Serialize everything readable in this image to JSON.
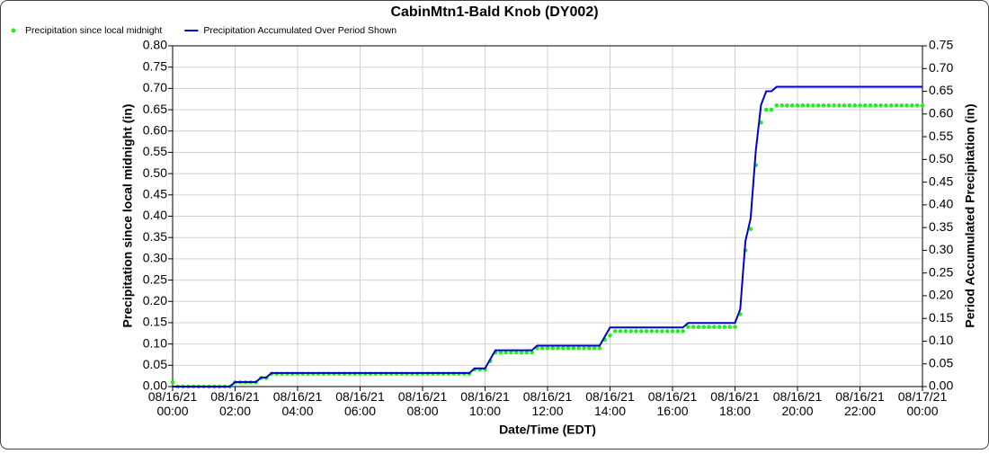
{
  "chart_data": {
    "type": "line-scatter",
    "title": "CabinMtn1-Bald Knob (DY002)",
    "x_label": "Date/Time (EDT)",
    "y_label": "Precipitation since local midnight (in)",
    "y2_label": "Period Accumulated Precipitation (in)",
    "x": [
      "08/16/21 00:00",
      "08/16/21 00:10",
      "08/16/21 00:20",
      "08/16/21 00:30",
      "08/16/21 00:40",
      "08/16/21 00:50",
      "08/16/21 01:00",
      "08/16/21 01:10",
      "08/16/21 01:20",
      "08/16/21 01:30",
      "08/16/21 01:40",
      "08/16/21 01:50",
      "08/16/21 02:00",
      "08/16/21 02:10",
      "08/16/21 02:20",
      "08/16/21 02:30",
      "08/16/21 02:40",
      "08/16/21 02:50",
      "08/16/21 03:00",
      "08/16/21 03:10",
      "08/16/21 03:20",
      "08/16/21 03:30",
      "08/16/21 03:40",
      "08/16/21 03:50",
      "08/16/21 04:00",
      "08/16/21 04:10",
      "08/16/21 04:20",
      "08/16/21 04:30",
      "08/16/21 04:40",
      "08/16/21 04:50",
      "08/16/21 05:00",
      "08/16/21 05:10",
      "08/16/21 05:20",
      "08/16/21 05:30",
      "08/16/21 05:40",
      "08/16/21 05:50",
      "08/16/21 06:00",
      "08/16/21 06:10",
      "08/16/21 06:20",
      "08/16/21 06:30",
      "08/16/21 06:40",
      "08/16/21 06:50",
      "08/16/21 07:00",
      "08/16/21 07:10",
      "08/16/21 07:20",
      "08/16/21 07:30",
      "08/16/21 07:40",
      "08/16/21 07:50",
      "08/16/21 08:00",
      "08/16/21 08:10",
      "08/16/21 08:20",
      "08/16/21 08:30",
      "08/16/21 08:40",
      "08/16/21 08:50",
      "08/16/21 09:00",
      "08/16/21 09:10",
      "08/16/21 09:20",
      "08/16/21 09:30",
      "08/16/21 09:40",
      "08/16/21 09:50",
      "08/16/21 10:00",
      "08/16/21 10:10",
      "08/16/21 10:20",
      "08/16/21 10:30",
      "08/16/21 10:40",
      "08/16/21 10:50",
      "08/16/21 11:00",
      "08/16/21 11:10",
      "08/16/21 11:20",
      "08/16/21 11:30",
      "08/16/21 11:40",
      "08/16/21 11:50",
      "08/16/21 12:00",
      "08/16/21 12:10",
      "08/16/21 12:20",
      "08/16/21 12:30",
      "08/16/21 12:40",
      "08/16/21 12:50",
      "08/16/21 13:00",
      "08/16/21 13:10",
      "08/16/21 13:20",
      "08/16/21 13:30",
      "08/16/21 13:40",
      "08/16/21 13:50",
      "08/16/21 14:00",
      "08/16/21 14:10",
      "08/16/21 14:20",
      "08/16/21 14:30",
      "08/16/21 14:40",
      "08/16/21 14:50",
      "08/16/21 15:00",
      "08/16/21 15:10",
      "08/16/21 15:20",
      "08/16/21 15:30",
      "08/16/21 15:40",
      "08/16/21 15:50",
      "08/16/21 16:00",
      "08/16/21 16:10",
      "08/16/21 16:20",
      "08/16/21 16:30",
      "08/16/21 16:40",
      "08/16/21 16:50",
      "08/16/21 17:00",
      "08/16/21 17:10",
      "08/16/21 17:20",
      "08/16/21 17:30",
      "08/16/21 17:40",
      "08/16/21 17:50",
      "08/16/21 18:00",
      "08/16/21 18:10",
      "08/16/21 18:20",
      "08/16/21 18:30",
      "08/16/21 18:40",
      "08/16/21 18:50",
      "08/16/21 19:00",
      "08/16/21 19:10",
      "08/16/21 19:20",
      "08/16/21 19:30",
      "08/16/21 19:40",
      "08/16/21 19:50",
      "08/16/21 20:00",
      "08/16/21 20:10",
      "08/16/21 20:20",
      "08/16/21 20:30",
      "08/16/21 20:40",
      "08/16/21 20:50",
      "08/16/21 21:00",
      "08/16/21 21:10",
      "08/16/21 21:20",
      "08/16/21 21:30",
      "08/16/21 21:40",
      "08/16/21 21:50",
      "08/16/21 22:00",
      "08/16/21 22:10",
      "08/16/21 22:20",
      "08/16/21 22:30",
      "08/16/21 22:40",
      "08/16/21 22:50",
      "08/16/21 23:00",
      "08/16/21 23:10",
      "08/16/21 23:20",
      "08/16/21 23:30",
      "08/16/21 23:40",
      "08/16/21 23:50",
      "08/17/21 00:00"
    ],
    "series": [
      {
        "name": "Precipitation since local midnight",
        "color": "#22ee22",
        "kind": "scatter",
        "axis": "y",
        "values": [
          0.01,
          0,
          0,
          0,
          0,
          0,
          0,
          0,
          0,
          0,
          0,
          0,
          0.01,
          0.01,
          0.01,
          0.01,
          0.01,
          0.02,
          0.02,
          0.03,
          0.03,
          0.03,
          0.03,
          0.03,
          0.03,
          0.03,
          0.03,
          0.03,
          0.03,
          0.03,
          0.03,
          0.03,
          0.03,
          0.03,
          0.03,
          0.03,
          0.03,
          0.03,
          0.03,
          0.03,
          0.03,
          0.03,
          0.03,
          0.03,
          0.03,
          0.03,
          0.03,
          0.03,
          0.03,
          0.03,
          0.03,
          0.03,
          0.03,
          0.03,
          0.03,
          0.03,
          0.03,
          0.03,
          0.04,
          0.04,
          0.04,
          0.06,
          0.08,
          0.08,
          0.08,
          0.08,
          0.08,
          0.08,
          0.08,
          0.08,
          0.09,
          0.09,
          0.09,
          0.09,
          0.09,
          0.09,
          0.09,
          0.09,
          0.09,
          0.09,
          0.09,
          0.09,
          0.09,
          0.11,
          0.12,
          0.13,
          0.13,
          0.13,
          0.13,
          0.13,
          0.13,
          0.13,
          0.13,
          0.13,
          0.13,
          0.13,
          0.13,
          0.13,
          0.13,
          0.14,
          0.14,
          0.14,
          0.14,
          0.14,
          0.14,
          0.14,
          0.14,
          0.14,
          0.14,
          0.17,
          0.32,
          0.37,
          0.52,
          0.62,
          0.65,
          0.65,
          0.66,
          0.66,
          0.66,
          0.66,
          0.66,
          0.66,
          0.66,
          0.66,
          0.66,
          0.66,
          0.66,
          0.66,
          0.66,
          0.66,
          0.66,
          0.66,
          0.66,
          0.66,
          0.66,
          0.66,
          0.66,
          0.66,
          0.66,
          0.66,
          0.66,
          0.66,
          0.66,
          0.66,
          0.66
        ]
      },
      {
        "name": "Precipitation Accumulated Over Period Shown",
        "color": "#0000cc",
        "kind": "line",
        "axis": "y2",
        "values": [
          0,
          0,
          0,
          0,
          0,
          0,
          0,
          0,
          0,
          0,
          0,
          0,
          0.01,
          0.01,
          0.01,
          0.01,
          0.01,
          0.02,
          0.02,
          0.03,
          0.03,
          0.03,
          0.03,
          0.03,
          0.03,
          0.03,
          0.03,
          0.03,
          0.03,
          0.03,
          0.03,
          0.03,
          0.03,
          0.03,
          0.03,
          0.03,
          0.03,
          0.03,
          0.03,
          0.03,
          0.03,
          0.03,
          0.03,
          0.03,
          0.03,
          0.03,
          0.03,
          0.03,
          0.03,
          0.03,
          0.03,
          0.03,
          0.03,
          0.03,
          0.03,
          0.03,
          0.03,
          0.03,
          0.04,
          0.04,
          0.04,
          0.06,
          0.08,
          0.08,
          0.08,
          0.08,
          0.08,
          0.08,
          0.08,
          0.08,
          0.09,
          0.09,
          0.09,
          0.09,
          0.09,
          0.09,
          0.09,
          0.09,
          0.09,
          0.09,
          0.09,
          0.09,
          0.09,
          0.11,
          0.13,
          0.13,
          0.13,
          0.13,
          0.13,
          0.13,
          0.13,
          0.13,
          0.13,
          0.13,
          0.13,
          0.13,
          0.13,
          0.13,
          0.13,
          0.14,
          0.14,
          0.14,
          0.14,
          0.14,
          0.14,
          0.14,
          0.14,
          0.14,
          0.14,
          0.17,
          0.32,
          0.37,
          0.52,
          0.62,
          0.65,
          0.65,
          0.66,
          0.66,
          0.66,
          0.66,
          0.66,
          0.66,
          0.66,
          0.66,
          0.66,
          0.66,
          0.66,
          0.66,
          0.66,
          0.66,
          0.66,
          0.66,
          0.66,
          0.66,
          0.66,
          0.66,
          0.66,
          0.66,
          0.66,
          0.66,
          0.66,
          0.66,
          0.66,
          0.66,
          0.66
        ]
      }
    ],
    "xlim": [
      "08/16/21 00:00",
      "08/17/21 00:00"
    ],
    "xticks": [
      "08/16/21 00:00",
      "08/16/21 02:00",
      "08/16/21 04:00",
      "08/16/21 06:00",
      "08/16/21 08:00",
      "08/16/21 10:00",
      "08/16/21 12:00",
      "08/16/21 14:00",
      "08/16/21 16:00",
      "08/16/21 18:00",
      "08/16/21 20:00",
      "08/16/21 22:00",
      "08/17/21 00:00"
    ],
    "ylim": [
      0,
      0.8
    ],
    "yticks": [
      {
        "value": 0,
        "label": "0.00"
      },
      {
        "value": 0.05,
        "label": "0.05"
      },
      {
        "value": 0.1,
        "label": "0.10"
      },
      {
        "value": 0.15,
        "label": "0.15"
      },
      {
        "value": 0.2,
        "label": "0.20"
      },
      {
        "value": 0.25,
        "label": "0.25"
      },
      {
        "value": 0.3,
        "label": "0.30"
      },
      {
        "value": 0.35,
        "label": "0.35"
      },
      {
        "value": 0.4,
        "label": "0.40"
      },
      {
        "value": 0.45,
        "label": "0.45"
      },
      {
        "value": 0.5,
        "label": "0.50"
      },
      {
        "value": 0.55,
        "label": "0.55"
      },
      {
        "value": 0.6,
        "label": "0.60"
      },
      {
        "value": 0.65,
        "label": "0.65"
      },
      {
        "value": 0.7,
        "label": "0.70"
      },
      {
        "value": 0.75,
        "label": "0.75"
      },
      {
        "value": 0.8,
        "label": "0.80"
      }
    ],
    "y2lim": [
      0,
      0.75
    ],
    "y2ticks": [
      {
        "value": 0,
        "label": "0.00"
      },
      {
        "value": 0.05,
        "label": "0.05"
      },
      {
        "value": 0.1,
        "label": "0.10"
      },
      {
        "value": 0.15,
        "label": "0.15"
      },
      {
        "value": 0.2,
        "label": "0.20"
      },
      {
        "value": 0.25,
        "label": "0.25"
      },
      {
        "value": 0.3,
        "label": "0.30"
      },
      {
        "value": 0.35,
        "label": "0.35"
      },
      {
        "value": 0.4,
        "label": "0.40"
      },
      {
        "value": 0.45,
        "label": "0.45"
      },
      {
        "value": 0.5,
        "label": "0.50"
      },
      {
        "value": 0.55,
        "label": "0.55"
      },
      {
        "value": 0.6,
        "label": "0.60"
      },
      {
        "value": 0.65,
        "label": "0.65"
      },
      {
        "value": 0.7,
        "label": "0.70"
      },
      {
        "value": 0.75,
        "label": "0.75"
      }
    ],
    "grid": true
  }
}
